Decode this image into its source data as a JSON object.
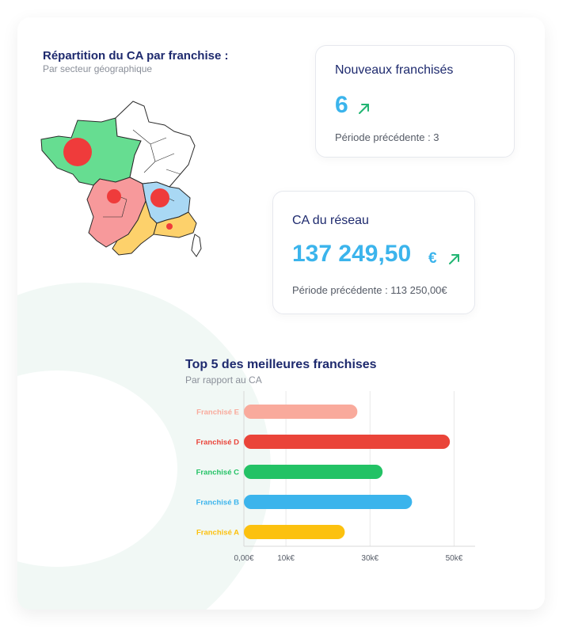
{
  "map_section": {
    "title": "Répartition du CA par franchise :",
    "subtitle": "Par secteur géographique"
  },
  "kpi_new": {
    "title": "Nouveaux franchisés",
    "value": "6",
    "prev": "Période précédente : 3",
    "trend": "up",
    "trend_color": "#22b573"
  },
  "kpi_ca": {
    "title": "CA du réseau",
    "value": "137 249,50",
    "currency": "€",
    "prev": "Période précédente : 113 250,00€",
    "trend": "up",
    "trend_color": "#22b573"
  },
  "colors": {
    "accent": "#3bb4ec",
    "title": "#1e2a6e",
    "region_green": "#66dd91",
    "region_red": "#f7999b",
    "region_blue": "#a9d8f4",
    "region_yellow": "#fdd16b",
    "bubble": "#ef3b3b"
  },
  "chart_data": {
    "type": "bar",
    "orientation": "horizontal",
    "title": "Top 5 des meilleures franchises",
    "subtitle": "Par rapport au CA",
    "categories": [
      "Franchisé E",
      "Franchisé D",
      "Franchisé C",
      "Franchisé B",
      "Franchisé A"
    ],
    "values": [
      27000,
      49000,
      33000,
      40000,
      24000
    ],
    "colors": [
      "#f9aa9c",
      "#ea4439",
      "#23c265",
      "#3bb4ec",
      "#fcc10f"
    ],
    "x_ticks": [
      0,
      10000,
      30000,
      50000
    ],
    "x_tick_labels": [
      "0,00€",
      "10k€",
      "30k€",
      "50k€"
    ],
    "xlim": [
      0,
      55000
    ],
    "grid": true
  }
}
